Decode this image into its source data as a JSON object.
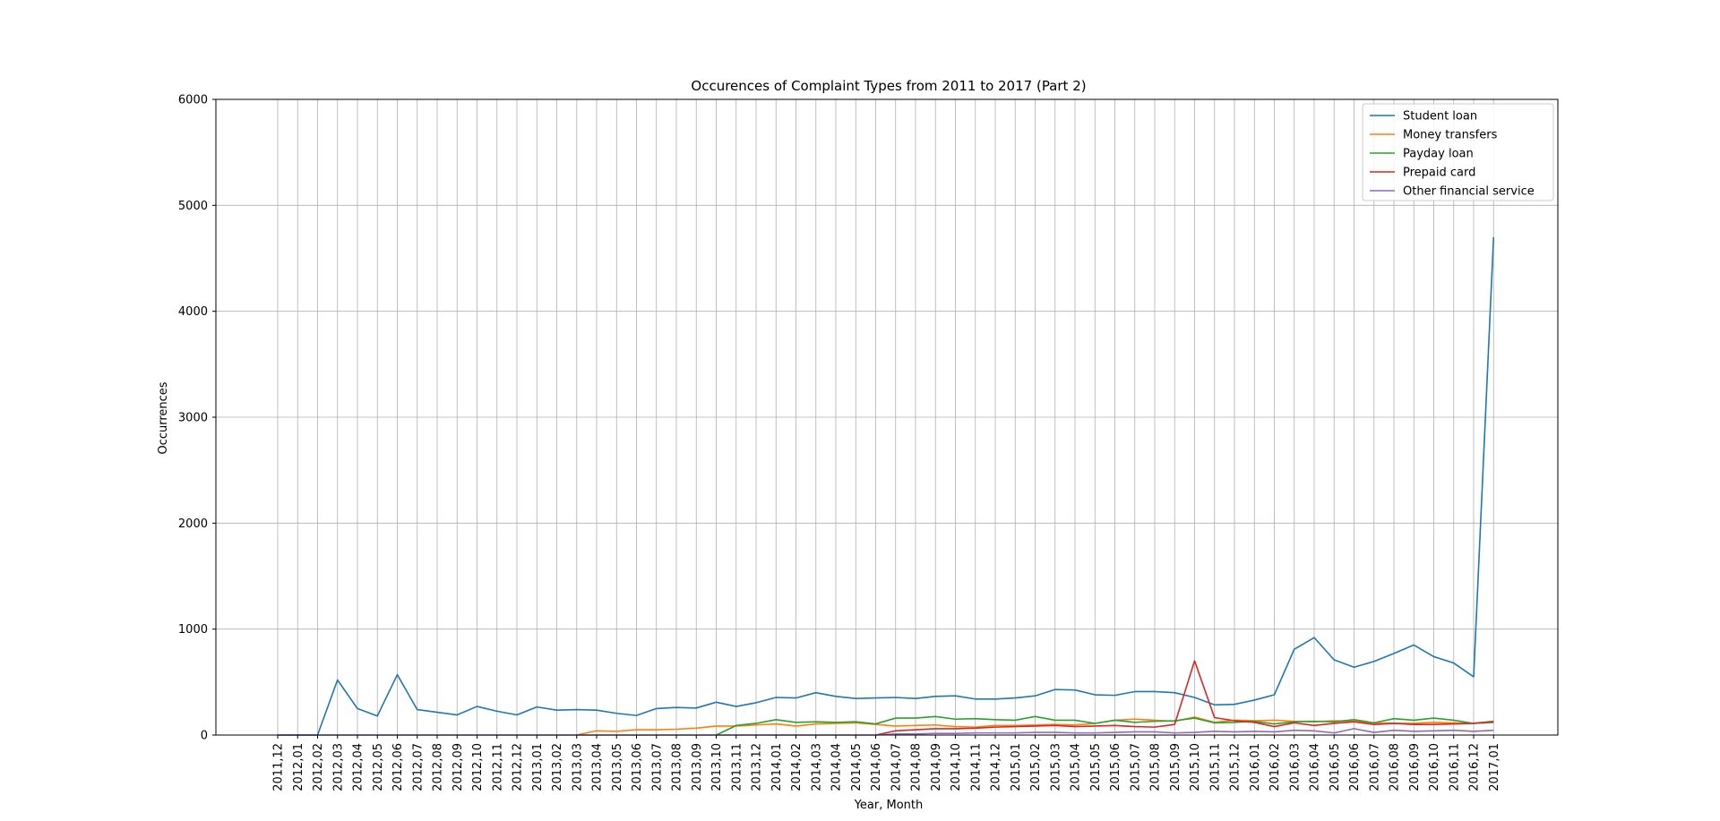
{
  "chart_data": {
    "type": "line",
    "title": "Occurences of Complaint Types from 2011 to 2017 (Part 2)",
    "xlabel": "Year, Month",
    "ylabel": "Occurrences",
    "ylim": [
      0,
      6000
    ],
    "yticks": [
      0,
      1000,
      2000,
      3000,
      4000,
      5000,
      6000
    ],
    "grid": true,
    "legend_position": "top-right",
    "categories": [
      "2011,12",
      "2012,01",
      "2012,02",
      "2012,03",
      "2012,04",
      "2012,05",
      "2012,06",
      "2012,07",
      "2012,08",
      "2012,09",
      "2012,10",
      "2012,11",
      "2012,12",
      "2013,01",
      "2013,02",
      "2013,03",
      "2013,04",
      "2013,05",
      "2013,06",
      "2013,07",
      "2013,08",
      "2013,09",
      "2013,10",
      "2013,11",
      "2013,12",
      "2014,01",
      "2014,02",
      "2014,03",
      "2014,04",
      "2014,05",
      "2014,06",
      "2014,07",
      "2014,08",
      "2014,09",
      "2014,10",
      "2014,11",
      "2014,12",
      "2015,01",
      "2015,02",
      "2015,03",
      "2015,04",
      "2015,05",
      "2015,06",
      "2015,07",
      "2015,08",
      "2015,09",
      "2015,10",
      "2015,11",
      "2015,12",
      "2016,01",
      "2016,02",
      "2016,03",
      "2016,04",
      "2016,05",
      "2016,06",
      "2016,07",
      "2016,08",
      "2016,09",
      "2016,10",
      "2016,11",
      "2016,12",
      "2017,01"
    ],
    "series": [
      {
        "name": "Student loan",
        "color": "#1f77b4",
        "values": [
          0,
          0,
          0,
          520,
          250,
          180,
          570,
          240,
          215,
          190,
          270,
          225,
          190,
          265,
          235,
          240,
          235,
          205,
          185,
          250,
          260,
          255,
          310,
          270,
          305,
          355,
          350,
          400,
          365,
          345,
          350,
          355,
          345,
          365,
          370,
          340,
          340,
          350,
          370,
          430,
          425,
          380,
          375,
          410,
          410,
          400,
          355,
          285,
          290,
          330,
          380,
          810,
          920,
          710,
          640,
          695,
          770,
          850,
          740,
          680,
          550,
          4700
        ]
      },
      {
        "name": "Money transfers",
        "color": "#ff7f0e",
        "values": [
          null,
          null,
          null,
          null,
          null,
          null,
          null,
          null,
          null,
          null,
          null,
          null,
          null,
          null,
          null,
          0,
          40,
          35,
          50,
          50,
          55,
          65,
          85,
          85,
          95,
          105,
          85,
          105,
          110,
          115,
          100,
          85,
          90,
          95,
          80,
          75,
          90,
          90,
          95,
          100,
          95,
          110,
          140,
          150,
          140,
          130,
          170,
          120,
          140,
          135,
          140,
          130,
          125,
          135,
          130,
          115,
          110,
          110,
          120,
          115,
          110,
          120
        ]
      },
      {
        "name": "Payday loan",
        "color": "#2ca02c",
        "values": [
          null,
          null,
          null,
          null,
          null,
          null,
          null,
          null,
          null,
          null,
          null,
          null,
          null,
          null,
          null,
          null,
          null,
          null,
          null,
          null,
          null,
          null,
          0,
          90,
          110,
          145,
          120,
          125,
          120,
          125,
          105,
          160,
          160,
          175,
          150,
          155,
          145,
          140,
          175,
          140,
          140,
          110,
          140,
          120,
          130,
          135,
          160,
          115,
          120,
          130,
          105,
          125,
          130,
          125,
          145,
          115,
          155,
          140,
          160,
          140,
          110,
          120
        ]
      },
      {
        "name": "Prepaid card",
        "color": "#d62728",
        "values": [
          null,
          null,
          null,
          null,
          null,
          null,
          null,
          null,
          null,
          null,
          null,
          null,
          null,
          null,
          null,
          null,
          null,
          null,
          null,
          null,
          null,
          null,
          null,
          null,
          null,
          null,
          null,
          null,
          null,
          null,
          0,
          40,
          50,
          60,
          60,
          65,
          75,
          80,
          85,
          90,
          80,
          85,
          90,
          80,
          75,
          100,
          700,
          165,
          135,
          120,
          80,
          115,
          90,
          110,
          125,
          100,
          110,
          100,
          100,
          105,
          110,
          130
        ]
      },
      {
        "name": "Other financial service",
        "color": "#9467bd",
        "values": [
          0,
          0,
          0,
          0,
          0,
          0,
          0,
          0,
          0,
          0,
          0,
          0,
          0,
          0,
          0,
          0,
          0,
          0,
          0,
          0,
          0,
          0,
          0,
          0,
          0,
          0,
          0,
          0,
          0,
          0,
          0,
          10,
          10,
          15,
          15,
          20,
          20,
          20,
          25,
          25,
          20,
          20,
          25,
          30,
          30,
          20,
          25,
          35,
          30,
          35,
          30,
          45,
          40,
          20,
          60,
          25,
          45,
          35,
          40,
          45,
          35,
          45
        ]
      }
    ]
  }
}
